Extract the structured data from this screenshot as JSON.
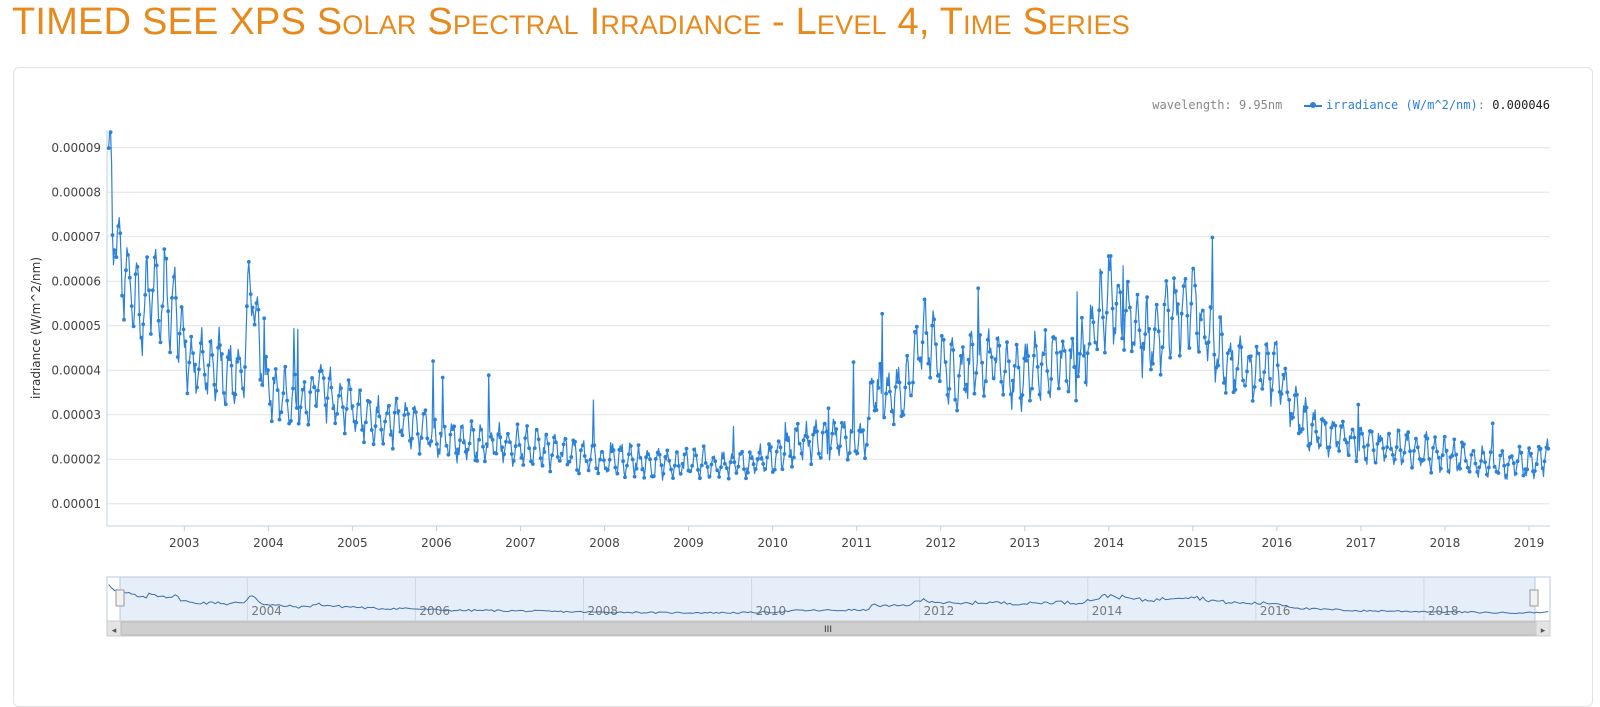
{
  "page": {
    "title": "TIMED SEE XPS Solar Spectral Irradiance - Level 4, Time Series"
  },
  "legend": {
    "wavelength_label": "wavelength:",
    "wavelength_value": "9.95nm",
    "series_label": "irradiance (W/m^2/nm)",
    "separator": ":",
    "current_value": "0.000046"
  },
  "colors": {
    "title": "#e8891c",
    "series": "#2c82d9",
    "grid": "#e3e3e3",
    "navigator_fill": "#e6eef9",
    "scrollbar": "#cfcfcf"
  },
  "navigator": {
    "scroll_grip": "III",
    "left_arrow": "◂",
    "right_arrow": "▸"
  },
  "chart_data": {
    "type": "line",
    "title": "",
    "xlabel": "",
    "ylabel": "irradiance (W/m^2/nm)",
    "xlim": [
      2002.08,
      2019.25
    ],
    "ylim": [
      5e-06,
      9.4e-05
    ],
    "yticks": [
      "0.00001",
      "0.00002",
      "0.00003",
      "0.00004",
      "0.00005",
      "0.00006",
      "0.00007",
      "0.00008",
      "0.00009"
    ],
    "xticks": [
      "2003",
      "2004",
      "2005",
      "2006",
      "2007",
      "2008",
      "2009",
      "2010",
      "2011",
      "2012",
      "2013",
      "2014",
      "2015",
      "2016",
      "2017",
      "2018",
      "2019"
    ],
    "navigator_ticks": [
      "2004",
      "2006",
      "2008",
      "2010",
      "2012",
      "2014",
      "2016",
      "2018"
    ],
    "grid": true,
    "series": [
      {
        "name": "irradiance (W/m^2/nm)",
        "x": [
          2002.1,
          2002.2,
          2002.3,
          2002.4,
          2002.5,
          2002.6,
          2002.7,
          2002.8,
          2002.9,
          2003.0,
          2003.1,
          2003.2,
          2003.3,
          2003.4,
          2003.5,
          2003.6,
          2003.7,
          2003.8,
          2003.9,
          2004.0,
          2004.2,
          2004.4,
          2004.6,
          2004.8,
          2005.0,
          2005.2,
          2005.4,
          2005.6,
          2005.8,
          2006.0,
          2006.3,
          2006.6,
          2007.0,
          2007.3,
          2007.6,
          2008.0,
          2008.3,
          2008.6,
          2009.0,
          2009.3,
          2009.6,
          2010.0,
          2010.3,
          2010.6,
          2011.0,
          2011.1,
          2011.2,
          2011.4,
          2011.6,
          2011.8,
          2012.0,
          2012.2,
          2012.4,
          2012.6,
          2012.8,
          2013.0,
          2013.2,
          2013.4,
          2013.6,
          2013.8,
          2014.0,
          2014.2,
          2014.4,
          2014.6,
          2014.8,
          2015.0,
          2015.2,
          2015.4,
          2015.6,
          2015.8,
          2016.0,
          2016.2,
          2016.4,
          2016.6,
          2016.8,
          2017.0,
          2017.3,
          2017.6,
          2018.0,
          2018.3,
          2018.6,
          2019.0,
          2019.25
        ],
        "values": [
          8.5e-05,
          6.8e-05,
          6.2e-05,
          5.8e-05,
          5e-05,
          6e-05,
          5.8e-05,
          5.6e-05,
          5.5e-05,
          4.5e-05,
          4e-05,
          4.2e-05,
          4e-05,
          4.3e-05,
          3.8e-05,
          4.1e-05,
          3.9e-05,
          6.2e-05,
          4.2e-05,
          3.6e-05,
          3.4e-05,
          3.1e-05,
          3.8e-05,
          3.3e-05,
          3.2e-05,
          2.9e-05,
          2.8e-05,
          2.9e-05,
          2.7e-05,
          2.5e-05,
          2.4e-05,
          2.4e-05,
          2.3e-05,
          2.2e-05,
          2.1e-05,
          2e-05,
          2e-05,
          1.9e-05,
          1.9e-05,
          1.9e-05,
          1.9e-05,
          2e-05,
          2.4e-05,
          2.4e-05,
          2.5e-05,
          2.4e-05,
          3.6e-05,
          3.3e-05,
          3.6e-05,
          4.8e-05,
          4.2e-05,
          3.8e-05,
          4.1e-05,
          4.2e-05,
          4e-05,
          3.9e-05,
          4.1e-05,
          4.3e-05,
          4e-05,
          4.8e-05,
          5.8e-05,
          5.2e-05,
          4.7e-05,
          4.8e-05,
          5.4e-05,
          5.5e-05,
          4.7e-05,
          4.2e-05,
          4e-05,
          4e-05,
          4e-05,
          3.1e-05,
          2.7e-05,
          2.6e-05,
          2.5e-05,
          2.3e-05,
          2.3e-05,
          2.2e-05,
          2.1e-05,
          2e-05,
          1.9e-05,
          1.9e-05,
          2.1e-05
        ]
      }
    ]
  }
}
